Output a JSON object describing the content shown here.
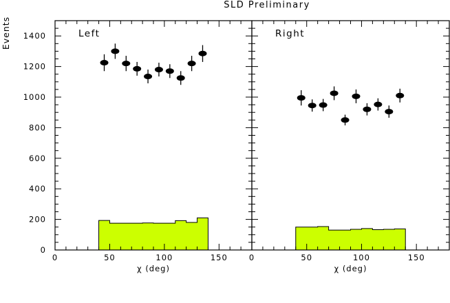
{
  "chart_data": {
    "type": "scatter",
    "title": "SLD Preliminary",
    "ylabel": "Events",
    "ylim": [
      0,
      1500
    ],
    "yticks": [
      0,
      200,
      400,
      600,
      800,
      1000,
      1200,
      1400
    ],
    "xticks": [
      0,
      50,
      100,
      150
    ],
    "hist_color": "#ccff00",
    "panels": [
      {
        "label": "Left",
        "xlabel": "χ (deg)",
        "xlim": [
          0,
          180
        ],
        "data": [
          {
            "x": 45,
            "y": 1225,
            "err": 55
          },
          {
            "x": 55,
            "y": 1300,
            "err": 50
          },
          {
            "x": 65,
            "y": 1220,
            "err": 50
          },
          {
            "x": 75,
            "y": 1185,
            "err": 45
          },
          {
            "x": 85,
            "y": 1135,
            "err": 45
          },
          {
            "x": 95,
            "y": 1180,
            "err": 45
          },
          {
            "x": 105,
            "y": 1170,
            "err": 45
          },
          {
            "x": 115,
            "y": 1125,
            "err": 45
          },
          {
            "x": 125,
            "y": 1220,
            "err": 50
          },
          {
            "x": 135,
            "y": 1285,
            "err": 55
          }
        ],
        "histogram": {
          "edges": [
            40,
            50,
            60,
            70,
            80,
            90,
            100,
            110,
            120,
            130,
            140
          ],
          "values": [
            193,
            175,
            175,
            175,
            177,
            175,
            175,
            192,
            180,
            210
          ]
        }
      },
      {
        "label": "Right",
        "xlabel": "χ (deg)",
        "xlim": [
          0,
          180
        ],
        "data": [
          {
            "x": 45,
            "y": 995,
            "err": 50
          },
          {
            "x": 55,
            "y": 945,
            "err": 40
          },
          {
            "x": 65,
            "y": 948,
            "err": 40
          },
          {
            "x": 75,
            "y": 1025,
            "err": 45
          },
          {
            "x": 85,
            "y": 850,
            "err": 35
          },
          {
            "x": 95,
            "y": 1005,
            "err": 45
          },
          {
            "x": 105,
            "y": 920,
            "err": 40
          },
          {
            "x": 115,
            "y": 952,
            "err": 40
          },
          {
            "x": 125,
            "y": 905,
            "err": 40
          },
          {
            "x": 135,
            "y": 1010,
            "err": 45
          }
        ],
        "histogram": {
          "edges": [
            40,
            50,
            60,
            70,
            80,
            90,
            100,
            110,
            120,
            130,
            140
          ],
          "values": [
            150,
            150,
            153,
            130,
            130,
            135,
            140,
            133,
            135,
            138
          ]
        }
      }
    ]
  }
}
